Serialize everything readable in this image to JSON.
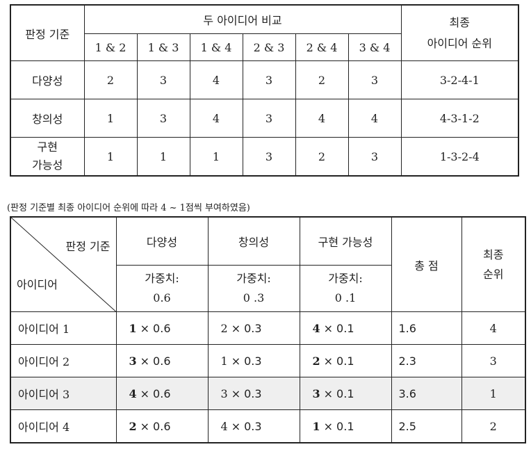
{
  "table1": {
    "header_criterion": "판정 기준",
    "header_compare": "두 아이디어 비교",
    "header_final": "최종\n아이디어 순위",
    "header_final_line1": "최종",
    "header_final_line2": "아이디어 순위",
    "pairs": [
      "1 & 2",
      "1 & 3",
      "1 & 4",
      "2 & 3",
      "2 & 4",
      "3 & 4"
    ],
    "rows": [
      {
        "criterion": "다양성",
        "values": [
          "2",
          "3",
          "4",
          "3",
          "2",
          "3"
        ],
        "rank": "3-2-4-1"
      },
      {
        "criterion": "창의성",
        "values": [
          "1",
          "3",
          "4",
          "3",
          "4",
          "4"
        ],
        "rank": "4-3-1-2"
      },
      {
        "criterion_line1": "구현",
        "criterion_line2": "가능성",
        "values": [
          "1",
          "1",
          "1",
          "3",
          "2",
          "3"
        ],
        "rank": "1-3-2-4"
      }
    ]
  },
  "note": "(판정 기준별 최종 아이디어 순위에 따라 4 ~ 1점씩 부여하였음)",
  "table2": {
    "corner_top": "판정 기준",
    "corner_bottom": "아이디어",
    "criteria": [
      "다양성",
      "창의성",
      "구현 가능성"
    ],
    "weight_label": "가중치:",
    "weights": [
      "0.6",
      "0 .3",
      "0 .1"
    ],
    "total_header": "총 점",
    "final_header_line1": "최종",
    "final_header_line2": "순위",
    "times": "×",
    "rows": [
      {
        "idea": "아이디어 1",
        "scores": [
          "1",
          "2",
          "4"
        ],
        "multipliers": [
          "0.6",
          "0.3",
          "0.1"
        ],
        "total": "1.6",
        "rank": "4"
      },
      {
        "idea": "아이디어 2",
        "scores": [
          "3",
          "1",
          "2"
        ],
        "multipliers": [
          "0.6",
          "0.3",
          "0.1"
        ],
        "total": "2.3",
        "rank": "3"
      },
      {
        "idea": "아이디어 3",
        "scores": [
          "4",
          "3",
          "3"
        ],
        "multipliers": [
          "0.6",
          "0.3",
          "0.1"
        ],
        "total": "3.6",
        "rank": "1"
      },
      {
        "idea": "아이디어 4",
        "scores": [
          "2",
          "4",
          "1"
        ],
        "multipliers": [
          "0.6",
          "0.3",
          "0.1"
        ],
        "total": "2.5",
        "rank": "2"
      }
    ],
    "bold_score_columns": [
      0,
      2
    ],
    "highlight_row_index": 2,
    "highlight_color": "#efefef"
  }
}
